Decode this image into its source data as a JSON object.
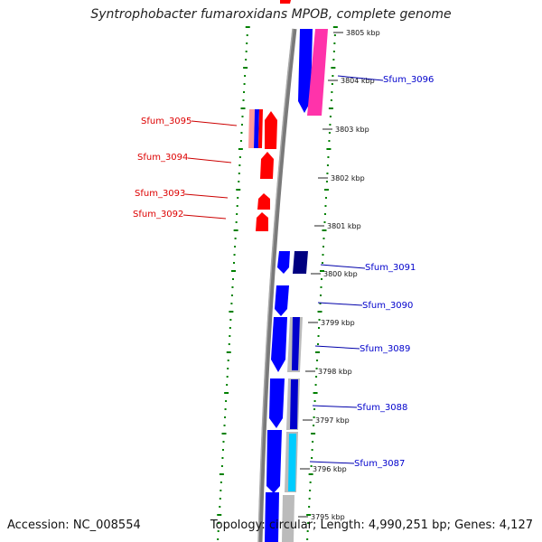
{
  "title": "Syntrophobacter fumaroxidans MPOB, complete genome",
  "footer": {
    "accession": "Accession: NC_008554",
    "topology": "Topology: circular; Length: 4,990,251 bp; Genes: 4,127"
  },
  "colors": {
    "forward_gene": "#ff0000",
    "reverse_gene": "#0000ff",
    "reverse_dark": "#000080",
    "pink_gene": "#ff33aa",
    "cyan_gene": "#00ccff",
    "gc_skew_ticks": "#008000",
    "backbone": "#777777"
  },
  "scale_labels": [
    "3805 kbp",
    "3804 kbp",
    "3803 kbp",
    "3802 kbp",
    "3801 kbp",
    "3800 kbp",
    "3799 kbp",
    "3798 kbp",
    "3797 kbp",
    "3796 kbp",
    "3795 kbp"
  ],
  "genes_left": [
    {
      "label": "Sfum_3095",
      "strand": "forward"
    },
    {
      "label": "Sfum_3094",
      "strand": "forward"
    },
    {
      "label": "Sfum_3093",
      "strand": "forward"
    },
    {
      "label": "Sfum_3092",
      "strand": "forward"
    }
  ],
  "genes_right": [
    {
      "label": "Sfum_3096",
      "strand": "reverse"
    },
    {
      "label": "Sfum_3091",
      "strand": "reverse"
    },
    {
      "label": "Sfum_3090",
      "strand": "reverse"
    },
    {
      "label": "Sfum_3089",
      "strand": "reverse"
    },
    {
      "label": "Sfum_3088",
      "strand": "reverse"
    },
    {
      "label": "Sfum_3087",
      "strand": "reverse"
    }
  ]
}
